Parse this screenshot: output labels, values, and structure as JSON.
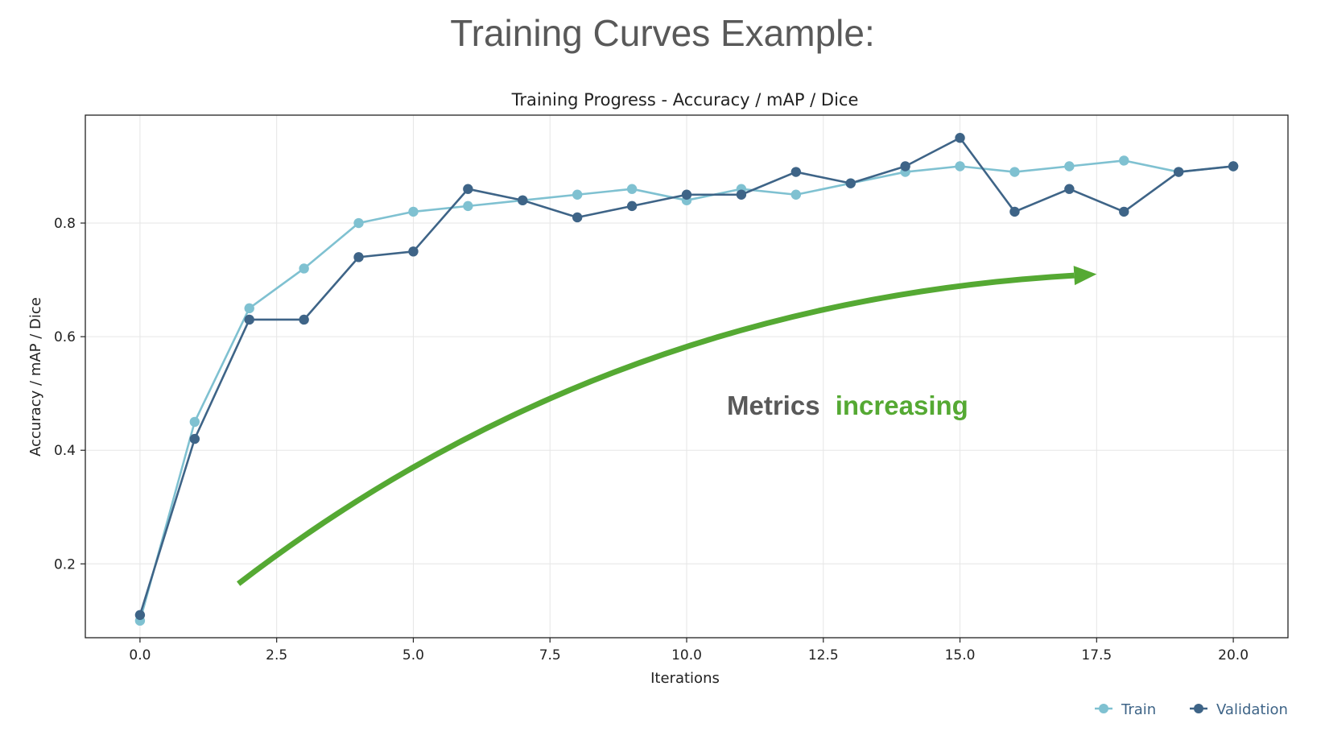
{
  "page": {
    "title": "Training Curves Example:"
  },
  "colors": {
    "train": "#7fc1d1",
    "validation": "#3e6487",
    "arrow": "#55a933",
    "annotation_dark": "#595959",
    "grid": "#e6e6e6"
  },
  "chart_data": {
    "type": "line",
    "title": "Training Progress - Accuracy / mAP / Dice",
    "xlabel": "Iterations",
    "ylabel": "Accuracy / mAP / Dice",
    "xlim": [
      -1,
      21
    ],
    "ylim": [
      0.07,
      0.99
    ],
    "x_ticks": [
      0.0,
      2.5,
      5.0,
      7.5,
      10.0,
      12.5,
      15.0,
      17.5,
      20.0
    ],
    "x_tick_labels": [
      "0.0",
      "2.5",
      "5.0",
      "7.5",
      "10.0",
      "12.5",
      "15.0",
      "17.5",
      "20.0"
    ],
    "y_ticks": [
      0.2,
      0.4,
      0.6,
      0.8
    ],
    "y_tick_labels": [
      "0.2",
      "0.4",
      "0.6",
      "0.8"
    ],
    "grid": true,
    "legend_position": "bottom-right",
    "x": [
      0,
      1,
      2,
      3,
      4,
      5,
      6,
      7,
      8,
      9,
      10,
      11,
      12,
      13,
      14,
      15,
      16,
      17,
      18,
      19,
      20
    ],
    "series": [
      {
        "name": "Train",
        "color": "#7fc1d1",
        "values": [
          0.1,
          0.45,
          0.65,
          0.72,
          0.8,
          0.82,
          0.83,
          0.84,
          0.85,
          0.86,
          0.84,
          0.86,
          0.85,
          0.87,
          0.89,
          0.9,
          0.89,
          0.9,
          0.91,
          0.89,
          0.9
        ]
      },
      {
        "name": "Validation",
        "color": "#3e6487",
        "values": [
          0.11,
          0.42,
          0.63,
          0.63,
          0.74,
          0.75,
          0.86,
          0.84,
          0.81,
          0.83,
          0.85,
          0.85,
          0.89,
          0.87,
          0.9,
          0.95,
          0.82,
          0.86,
          0.82,
          0.89,
          0.9
        ]
      }
    ],
    "annotation": {
      "text_prefix": "Metrics",
      "text_highlight": "increasing",
      "arrow_from": [
        1.8,
        0.165
      ],
      "arrow_ctrl": [
        8.5,
        0.66
      ],
      "arrow_to": [
        17.5,
        0.71
      ]
    }
  }
}
